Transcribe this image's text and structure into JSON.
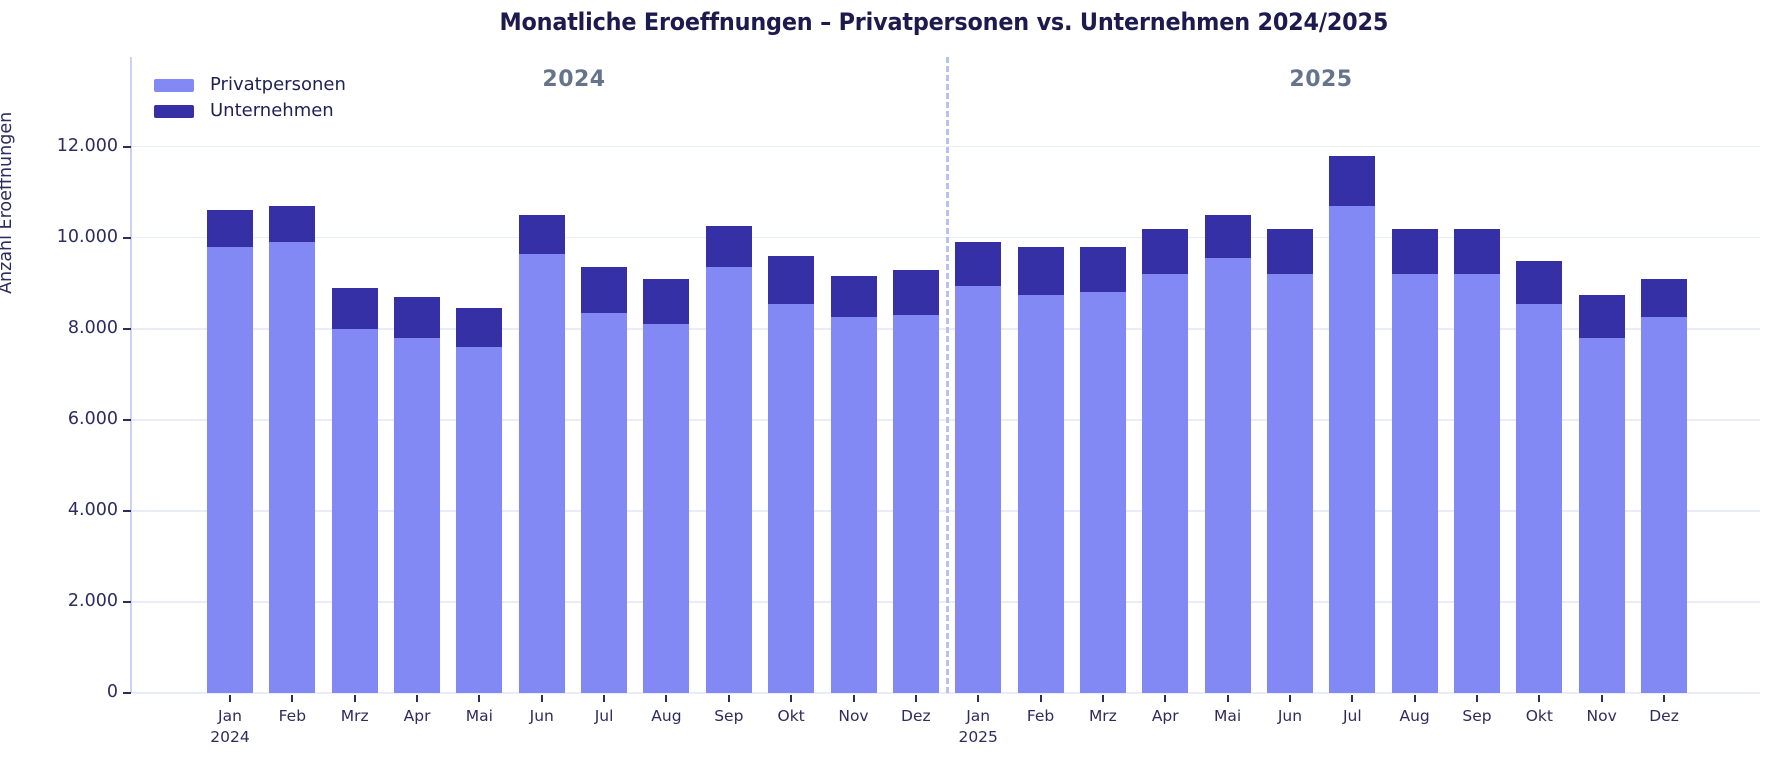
{
  "title": "Monatliche Eroeffnungen – Privatpersonen vs. Unternehmen 2024/2025",
  "colors": {
    "privatpersonen": "#8289f4",
    "unternehmen": "#3530a5",
    "grid": "#e9edfa",
    "axis_line": "#cbd3ef",
    "tick_text": "#2d2c5e",
    "title_text": "#1d1a4e",
    "year_annotation": "#64748b",
    "divider": "#b7c3ec"
  },
  "legend": {
    "items": [
      {
        "label": "Privatpersonen",
        "color": "#8289f4"
      },
      {
        "label": "Unternehmen",
        "color": "#3530a5"
      }
    ]
  },
  "y_axis": {
    "label": "Anzahl Eroeffnungen",
    "ticks": [
      {
        "value": 0,
        "label": "0"
      },
      {
        "value": 2000,
        "label": "2.000"
      },
      {
        "value": 4000,
        "label": "4.000"
      },
      {
        "value": 6000,
        "label": "6.000"
      },
      {
        "value": 8000,
        "label": "8.000"
      },
      {
        "value": 10000,
        "label": "10.000"
      },
      {
        "value": 12000,
        "label": "12.000"
      }
    ]
  },
  "annotations": {
    "left_year": "2024",
    "right_year": "2025"
  },
  "chart_data": {
    "type": "bar",
    "stacked": true,
    "title": "Monatliche Eroeffnungen – Privatpersonen vs. Unternehmen 2024/2025",
    "xlabel": "",
    "ylabel": "Anzahl Eroeffnungen",
    "ylim": [
      0,
      13970
    ],
    "grid": true,
    "legend_position": "top-left",
    "divider_after_category": "Dez 2024",
    "categories": [
      "Jan 2024",
      "Feb 2024",
      "Mrz 2024",
      "Apr 2024",
      "Mai 2024",
      "Jun 2024",
      "Jul 2024",
      "Aug 2024",
      "Sep 2024",
      "Okt 2024",
      "Nov 2024",
      "Dez 2024",
      "Jan 2025",
      "Feb 2025",
      "Mrz 2025",
      "Apr 2025",
      "Mai 2025",
      "Jun 2025",
      "Jul 2025",
      "Aug 2025",
      "Sep 2025",
      "Okt 2025",
      "Nov 2025",
      "Dez 2025"
    ],
    "x_tick_labels": [
      {
        "label": "Jan",
        "sublabel": "2024"
      },
      {
        "label": "Feb"
      },
      {
        "label": "Mrz"
      },
      {
        "label": "Apr"
      },
      {
        "label": "Mai"
      },
      {
        "label": "Jun"
      },
      {
        "label": "Jul"
      },
      {
        "label": "Aug"
      },
      {
        "label": "Sep"
      },
      {
        "label": "Okt"
      },
      {
        "label": "Nov"
      },
      {
        "label": "Dez"
      },
      {
        "label": "Jan",
        "sublabel": "2025"
      },
      {
        "label": "Feb"
      },
      {
        "label": "Mrz"
      },
      {
        "label": "Apr"
      },
      {
        "label": "Mai"
      },
      {
        "label": "Jun"
      },
      {
        "label": "Jul"
      },
      {
        "label": "Aug"
      },
      {
        "label": "Sep"
      },
      {
        "label": "Okt"
      },
      {
        "label": "Nov"
      },
      {
        "label": "Dez"
      }
    ],
    "series": [
      {
        "name": "Privatpersonen",
        "values": [
          9800,
          9900,
          8000,
          7800,
          7600,
          9650,
          8350,
          8100,
          9350,
          8550,
          8250,
          8300,
          8950,
          8750,
          8800,
          9200,
          9550,
          9200,
          10700,
          9200,
          9200,
          8550,
          7800,
          8250
        ]
      },
      {
        "name": "Unternehmen",
        "values": [
          800,
          800,
          900,
          900,
          850,
          850,
          1000,
          1000,
          900,
          1050,
          900,
          1000,
          950,
          1050,
          1000,
          1000,
          950,
          1000,
          1100,
          1000,
          1000,
          950,
          950,
          850
        ]
      }
    ]
  }
}
